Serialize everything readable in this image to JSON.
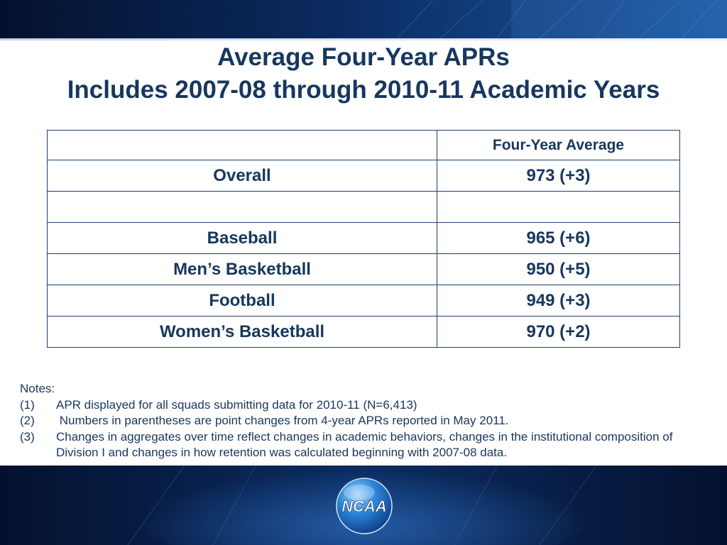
{
  "slide": {
    "title_line1": "Average Four-Year APRs",
    "title_line2": "Includes 2007-08 through 2010-11 Academic Years"
  },
  "table": {
    "header": [
      "",
      "Four-Year Average"
    ],
    "rows": [
      {
        "label": "Overall",
        "value": "973 (+3)"
      },
      {
        "label": "",
        "value": ""
      },
      {
        "label": "Baseball",
        "value": "965 (+6)"
      },
      {
        "label": "Men’s Basketball",
        "value": "950 (+5)"
      },
      {
        "label": "Football",
        "value": "949 (+3)"
      },
      {
        "label": "Women’s Basketball",
        "value": "970 (+2)"
      }
    ]
  },
  "notes": {
    "heading": "Notes:",
    "items": [
      {
        "num": "(1)",
        "text": "APR displayed for all squads submitting data for 2010-11 (N=6,413)"
      },
      {
        "num": "(2)",
        "text": " Numbers in parentheses are point changes from 4-year APRs reported in May 2011."
      },
      {
        "num": "(3)",
        "text": "Changes in aggregates over time reflect changes in academic behaviors, changes in the institutional composition of Division I and changes in how retention was calculated beginning with 2007-08 data."
      }
    ]
  },
  "logo": {
    "icon": "ncaa-logo-icon",
    "text": "NCAA"
  },
  "colors": {
    "title": "#17375e",
    "band_dark": "#04112e",
    "band_light": "#1c5aa6",
    "table_border": "#1f3f6e"
  }
}
